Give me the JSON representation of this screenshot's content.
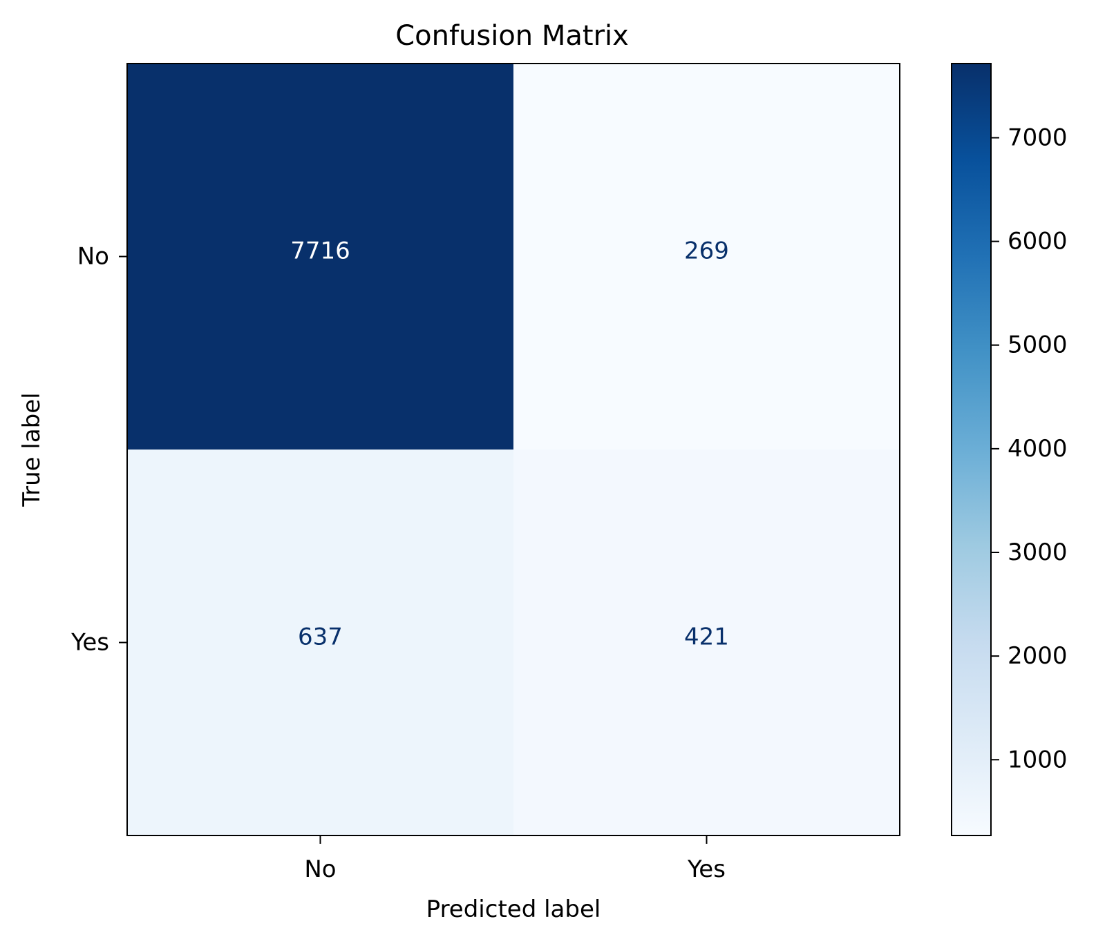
{
  "chart_data": {
    "type": "heatmap",
    "title": "Confusion Matrix",
    "xlabel": "Predicted label",
    "ylabel": "True label",
    "x_categories": [
      "No",
      "Yes"
    ],
    "y_categories": [
      "No",
      "Yes"
    ],
    "values": [
      [
        7716,
        269
      ],
      [
        637,
        421
      ]
    ],
    "colormap": "Blues",
    "colorbar": {
      "range": [
        269,
        7716
      ],
      "ticks": [
        1000,
        2000,
        3000,
        4000,
        5000,
        6000,
        7000
      ],
      "tick_labels": [
        "1000",
        "2000",
        "3000",
        "4000",
        "5000",
        "6000",
        "7000"
      ]
    },
    "text_colors": {
      "dark_cell": "#ffffff",
      "light_cell": "#08306b"
    }
  }
}
